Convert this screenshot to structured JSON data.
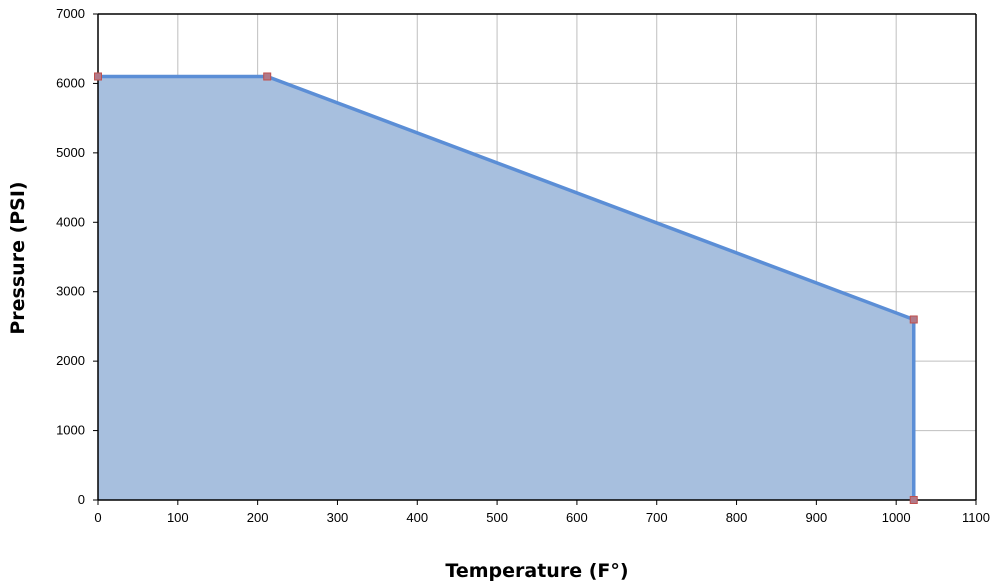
{
  "chart_data": {
    "type": "area",
    "title": "",
    "xlabel": "Temperature (F°)",
    "ylabel": "Pressure (PSI)",
    "xlim": [
      0,
      1100
    ],
    "ylim": [
      0,
      7000
    ],
    "x_ticks": [
      0,
      100,
      200,
      300,
      400,
      500,
      600,
      700,
      800,
      900,
      1000,
      1100
    ],
    "y_ticks": [
      0,
      1000,
      2000,
      3000,
      4000,
      5000,
      6000,
      7000
    ],
    "grid": true,
    "legend": "none",
    "series": [
      {
        "points": [
          {
            "x": 0,
            "y": 6100
          },
          {
            "x": 212,
            "y": 6100
          },
          {
            "x": 1022,
            "y": 2600
          },
          {
            "x": 1022,
            "y": 0
          }
        ]
      }
    ],
    "colors": {
      "line": "#5b8ed6",
      "fill": "#a7bfde",
      "marker_fill": "#b07a8a",
      "marker_stroke": "#c0504d",
      "grid": "#bfbfbf",
      "axis": "#000000"
    }
  }
}
